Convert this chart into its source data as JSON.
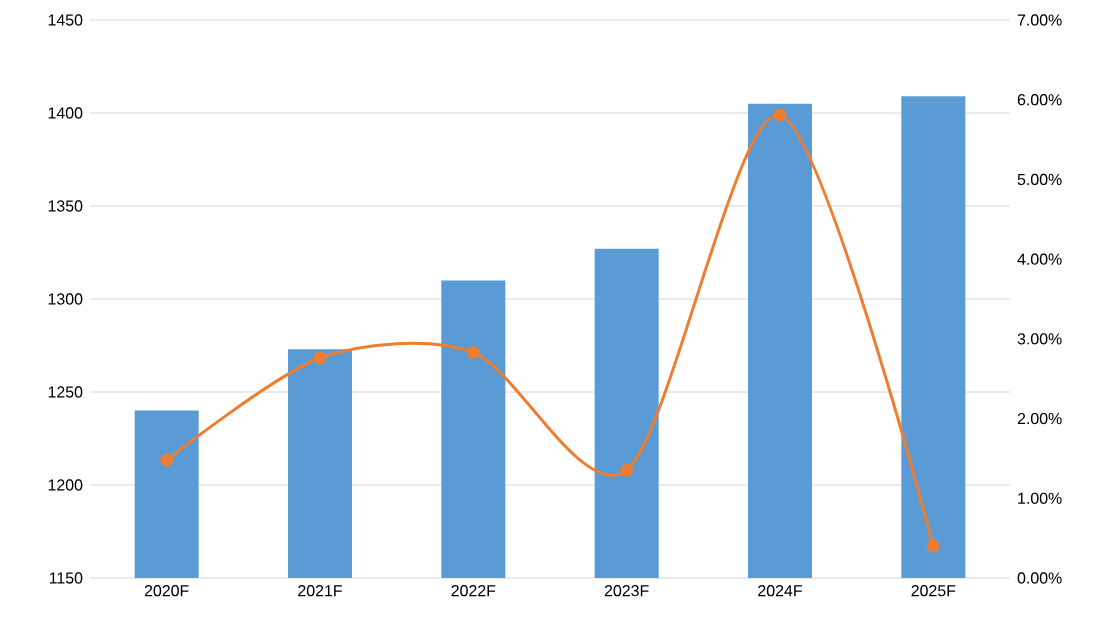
{
  "chart_data": {
    "type": "bar",
    "categories": [
      "2020F",
      "2021F",
      "2022F",
      "2023F",
      "2024F",
      "2025F"
    ],
    "series": [
      {
        "color": "#5b9bd5",
        "values": [
          1240,
          1273,
          1310,
          1327,
          1405,
          1409
        ]
      },
      {
        "type": "line",
        "axis": "y2",
        "color": "#ed7d31",
        "values": [
          1.48,
          2.76,
          2.83,
          1.35,
          5.81,
          0.4
        ]
      }
    ],
    "ylim": [
      1150,
      1450
    ],
    "yticks": [
      1150,
      1200,
      1250,
      1300,
      1350,
      1400,
      1450
    ],
    "y2lim": [
      0,
      7
    ],
    "y2ticks": [
      {
        "value": 0,
        "label": "0.00%"
      },
      {
        "value": 1,
        "label": "1.00%"
      },
      {
        "value": 2,
        "label": "2.00%"
      },
      {
        "value": 3,
        "label": "3.00%"
      },
      {
        "value": 4,
        "label": "4.00%"
      },
      {
        "value": 5,
        "label": "5.00%"
      },
      {
        "value": 6,
        "label": "6.00%"
      },
      {
        "value": 7,
        "label": "7.00%"
      }
    ],
    "grid": "y",
    "marker": "circle"
  }
}
